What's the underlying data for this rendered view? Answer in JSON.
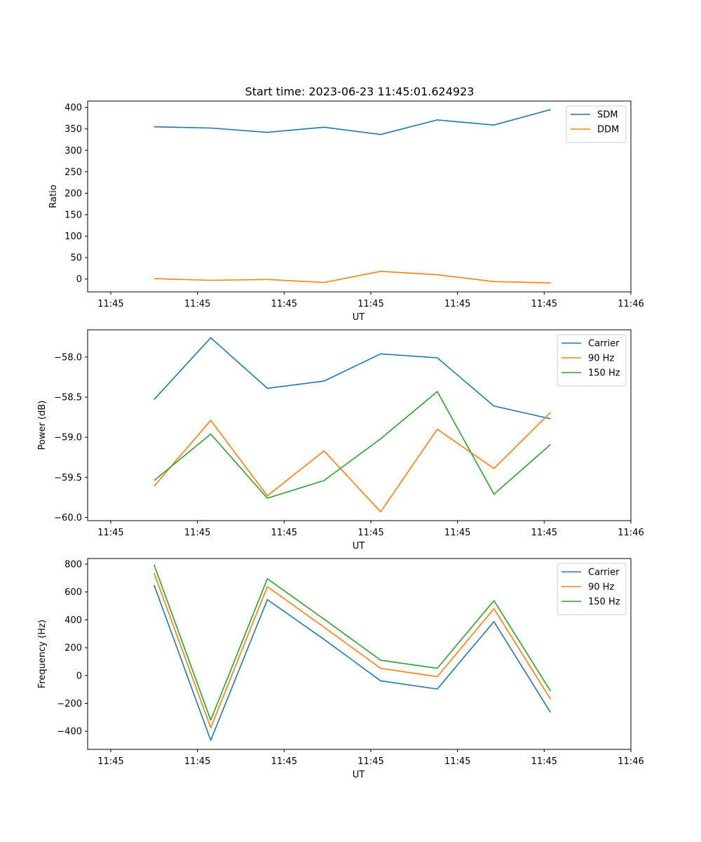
{
  "figure_title": "Start time: 2023-06-23 11:45:01.624923",
  "chart_data": [
    {
      "type": "line",
      "title": "",
      "xlabel": "UT",
      "ylabel": "Ratio",
      "xlim": [
        -0.2,
        4.5
      ],
      "ylim": [
        -30,
        415
      ],
      "x_ticks": [
        0,
        0.75,
        1.5,
        2.25,
        3.0,
        3.75,
        4.5
      ],
      "x_tick_labels": [
        "11:45",
        "11:45",
        "11:45",
        "11:45",
        "11:45",
        "11:45",
        "11:46"
      ],
      "y_ticks": [
        0,
        50,
        100,
        150,
        200,
        250,
        300,
        350,
        400
      ],
      "y_tick_labels": [
        "0",
        "50",
        "100",
        "150",
        "200",
        "250",
        "300",
        "350",
        "400"
      ],
      "legend_position": "top-right",
      "x": [
        0.375,
        0.865,
        1.355,
        1.845,
        2.335,
        2.825,
        3.315,
        3.805
      ],
      "series": [
        {
          "name": "SDM",
          "color": "#1f77b4",
          "values": [
            355,
            352,
            342,
            354,
            337,
            371,
            359,
            395
          ]
        },
        {
          "name": "DDM",
          "color": "#ff7f0e",
          "values": [
            1,
            -3,
            -1,
            -8,
            18,
            10,
            -6,
            -9
          ]
        }
      ]
    },
    {
      "type": "line",
      "title": "",
      "xlabel": "UT",
      "ylabel": "Power (dB)",
      "xlim": [
        -0.2,
        4.5
      ],
      "ylim": [
        -60.04,
        -57.66
      ],
      "x_ticks": [
        0,
        0.75,
        1.5,
        2.25,
        3.0,
        3.75,
        4.5
      ],
      "x_tick_labels": [
        "11:45",
        "11:45",
        "11:45",
        "11:45",
        "11:45",
        "11:45",
        "11:46"
      ],
      "y_ticks": [
        -60.0,
        -59.5,
        -59.0,
        -58.5,
        -58.0
      ],
      "y_tick_labels": [
        "−60.0",
        "−59.5",
        "−59.0",
        "−58.5",
        "−58.0"
      ],
      "legend_position": "top-right",
      "x": [
        0.375,
        0.865,
        1.355,
        1.845,
        2.335,
        2.825,
        3.315,
        3.805
      ],
      "series": [
        {
          "name": "Carrier",
          "color": "#1f77b4",
          "values": [
            -58.53,
            -57.76,
            -58.39,
            -58.3,
            -57.96,
            -58.01,
            -58.61,
            -58.77
          ]
        },
        {
          "name": "90 Hz",
          "color": "#ff7f0e",
          "values": [
            -59.61,
            -58.79,
            -59.73,
            -59.17,
            -59.93,
            -58.9,
            -59.39,
            -58.69
          ]
        },
        {
          "name": "150 Hz",
          "color": "#2ca02c",
          "values": [
            -59.54,
            -58.96,
            -59.76,
            -59.54,
            -59.02,
            -58.43,
            -59.71,
            -59.09
          ]
        }
      ]
    },
    {
      "type": "line",
      "title": "",
      "xlabel": "UT",
      "ylabel": "Frequency (Hz)",
      "xlim": [
        -0.2,
        4.5
      ],
      "ylim": [
        -530,
        840
      ],
      "x_ticks": [
        0,
        0.75,
        1.5,
        2.25,
        3.0,
        3.75,
        4.5
      ],
      "x_tick_labels": [
        "11:45",
        "11:45",
        "11:45",
        "11:45",
        "11:45",
        "11:45",
        "11:46"
      ],
      "y_ticks": [
        -400,
        -200,
        0,
        200,
        400,
        600,
        800
      ],
      "y_tick_labels": [
        "−400",
        "−200",
        "0",
        "200",
        "400",
        "600",
        "800"
      ],
      "legend_position": "top-right",
      "x": [
        0.375,
        0.865,
        1.355,
        1.845,
        2.335,
        2.825,
        3.315,
        3.805
      ],
      "series": [
        {
          "name": "Carrier",
          "color": "#1f77b4",
          "values": [
            650,
            -465,
            545,
            260,
            -38,
            -97,
            387,
            -265
          ]
        },
        {
          "name": "90 Hz",
          "color": "#ff7f0e",
          "values": [
            735,
            -375,
            638,
            347,
            52,
            -8,
            480,
            -170
          ]
        },
        {
          "name": "150 Hz",
          "color": "#2ca02c",
          "values": [
            795,
            -320,
            695,
            405,
            110,
            52,
            538,
            -112
          ]
        }
      ]
    }
  ]
}
